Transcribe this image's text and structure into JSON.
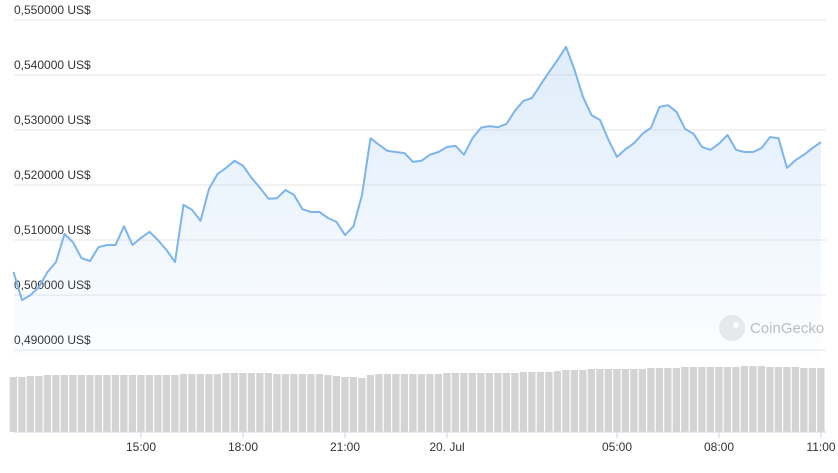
{
  "chart_data": {
    "type": "line",
    "x": [
      11.25,
      11.5,
      11.75,
      12,
      12.25,
      12.5,
      12.75,
      13,
      13.25,
      13.5,
      13.75,
      14,
      14.25,
      14.5,
      14.75,
      15,
      15.25,
      15.5,
      15.75,
      16,
      16.25,
      16.5,
      16.75,
      17,
      17.25,
      17.5,
      17.75,
      18,
      18.25,
      18.5,
      18.75,
      19,
      19.25,
      19.5,
      19.75,
      20,
      20.25,
      20.5,
      20.75,
      21,
      21.25,
      21.5,
      21.75,
      22,
      22.25,
      22.5,
      22.75,
      23,
      23.25,
      23.5,
      23.75,
      24,
      24.25,
      24.5,
      24.75,
      25,
      25.25,
      25.5,
      25.75,
      26,
      26.25,
      26.5,
      26.75,
      27,
      27.25,
      27.5,
      27.75,
      28,
      28.25,
      28.5,
      28.75,
      29,
      29.25,
      29.5,
      29.75,
      30,
      30.25,
      30.5,
      30.75,
      31,
      31.25,
      31.5,
      31.75,
      32,
      32.25,
      32.5,
      32.75,
      33,
      33.25,
      33.5,
      33.75,
      34,
      34.25,
      34.5,
      34.75,
      35
    ],
    "values": [
      0.5042,
      0.4991,
      0.5,
      0.5015,
      0.5042,
      0.506,
      0.5111,
      0.5096,
      0.5067,
      0.5062,
      0.5087,
      0.5091,
      0.5091,
      0.5125,
      0.5091,
      0.5104,
      0.5115,
      0.51,
      0.5082,
      0.506,
      0.5164,
      0.5155,
      0.5135,
      0.5193,
      0.522,
      0.5231,
      0.5244,
      0.5235,
      0.5213,
      0.5195,
      0.5175,
      0.5176,
      0.5191,
      0.5182,
      0.5156,
      0.5151,
      0.5151,
      0.514,
      0.5133,
      0.5109,
      0.5125,
      0.5182,
      0.5285,
      0.5273,
      0.5262,
      0.526,
      0.5258,
      0.5242,
      0.5244,
      0.5255,
      0.526,
      0.5269,
      0.5271,
      0.5255,
      0.5285,
      0.5304,
      0.5307,
      0.5305,
      0.5311,
      0.5335,
      0.5353,
      0.5358,
      0.5382,
      0.5405,
      0.5427,
      0.5451,
      0.5409,
      0.536,
      0.5327,
      0.5318,
      0.5282,
      0.5251,
      0.5265,
      0.5276,
      0.5293,
      0.5304,
      0.5342,
      0.5345,
      0.5333,
      0.5302,
      0.5293,
      0.5269,
      0.5264,
      0.5275,
      0.5291,
      0.5264,
      0.526,
      0.526,
      0.5267,
      0.5287,
      0.5285,
      0.5231,
      0.5245,
      0.5255,
      0.5267,
      0.5278
    ],
    "volume": [
      55,
      55,
      56,
      56,
      57,
      57,
      57,
      57,
      57,
      57,
      57,
      57,
      57,
      57,
      57,
      57,
      57,
      57,
      57,
      57,
      58,
      58,
      58,
      58,
      58,
      59,
      59,
      59,
      59,
      59,
      59,
      58,
      58,
      58,
      58,
      58,
      58,
      57,
      56,
      55,
      55,
      54,
      57,
      58,
      58,
      58,
      58,
      58,
      58,
      58,
      58,
      59,
      59,
      59,
      59,
      59,
      59,
      59,
      59,
      59,
      60,
      60,
      60,
      60,
      61,
      62,
      62,
      62,
      63,
      63,
      63,
      63,
      63,
      63,
      63,
      64,
      64,
      64,
      64,
      65,
      65,
      65,
      65,
      65,
      65,
      65,
      66,
      66,
      66,
      65,
      65,
      65,
      65,
      64,
      64,
      64
    ],
    "color": "#7cb5ec",
    "volume_color": "#d4d4d4",
    "xlim": [
      11.25,
      35.1
    ],
    "ylim": [
      0.4864,
      0.5536
    ],
    "xticks": [
      {
        "value": 15,
        "label": "15:00"
      },
      {
        "value": 18,
        "label": "18:00"
      },
      {
        "value": 21,
        "label": "21:00"
      },
      {
        "value": 24,
        "label": "20. Jul"
      },
      {
        "value": 29,
        "label": "05:00"
      },
      {
        "value": 32,
        "label": "08:00"
      },
      {
        "value": 35,
        "label": "11:00"
      }
    ],
    "yticks": [
      {
        "value": 0.49,
        "label": "0,490000 US$"
      },
      {
        "value": 0.5,
        "label": "0,500000 US$"
      },
      {
        "value": 0.51,
        "label": "0,510000 US$"
      },
      {
        "value": 0.52,
        "label": "0,520000 US$"
      },
      {
        "value": 0.53,
        "label": "0,530000 US$"
      },
      {
        "value": 0.54,
        "label": "0,540000 US$"
      },
      {
        "value": 0.55,
        "label": "0,550000 US$"
      }
    ],
    "grid": true,
    "watermark": "CoinGecko"
  }
}
